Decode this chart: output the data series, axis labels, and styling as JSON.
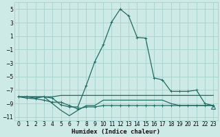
{
  "bg_color": "#ceeae6",
  "grid_color": "#a8d4cf",
  "line_color": "#1d6b62",
  "xlabel": "Humidex (Indice chaleur)",
  "xlim": [
    -0.5,
    23.5
  ],
  "ylim": [
    -11.5,
    6.0
  ],
  "xticks": [
    0,
    1,
    2,
    3,
    4,
    5,
    6,
    7,
    8,
    9,
    10,
    11,
    12,
    13,
    14,
    15,
    16,
    17,
    18,
    19,
    20,
    21,
    22,
    23
  ],
  "yticks": [
    -11,
    -9,
    -7,
    -5,
    -3,
    -1,
    1,
    3,
    5
  ],
  "series_main": {
    "x": [
      0,
      1,
      2,
      3,
      4,
      5,
      6,
      7,
      8,
      9,
      10,
      11,
      12,
      13,
      14,
      15,
      16,
      17,
      18,
      19,
      20,
      21,
      22,
      23
    ],
    "y": [
      -8,
      -8,
      -8.2,
      -8,
      -8.2,
      -9.2,
      -9.5,
      -9.5,
      -6.3,
      -2.8,
      -0.3,
      3.1,
      5.0,
      4.0,
      0.8,
      0.7,
      -5.2,
      -5.5,
      -7.2,
      -7.2,
      -7.2,
      -7.0,
      -9.0,
      -9.3
    ],
    "marker": "+"
  },
  "series2": {
    "x": [
      0,
      1,
      2,
      3,
      4,
      5,
      6,
      7,
      8,
      9,
      10,
      11,
      12,
      13,
      14,
      15,
      16,
      17,
      18,
      19,
      20,
      21,
      22,
      23
    ],
    "y": [
      -8,
      -8,
      -8,
      -8,
      -8,
      -7.8,
      -7.8,
      -7.8,
      -7.8,
      -7.8,
      -7.8,
      -7.8,
      -7.8,
      -7.8,
      -7.8,
      -7.8,
      -7.8,
      -7.8,
      -7.8,
      -7.8,
      -7.8,
      -7.8,
      -7.8,
      -7.8
    ],
    "marker": null
  },
  "series3": {
    "x": [
      0,
      1,
      2,
      3,
      4,
      5,
      6,
      7,
      8,
      9,
      10,
      11,
      12,
      13,
      14,
      15,
      16,
      17,
      18,
      19,
      20,
      21,
      22,
      23
    ],
    "y": [
      -8,
      -8,
      -8,
      -8,
      -9,
      -10,
      -10.8,
      -10,
      -9.3,
      -9.3,
      -8.5,
      -8.5,
      -8.5,
      -8.5,
      -8.5,
      -8.5,
      -8.5,
      -8.5,
      -9.0,
      -9.3,
      -9.3,
      -9.3,
      -9.3,
      -9.3
    ],
    "marker": null
  },
  "series4": {
    "x": [
      0,
      1,
      2,
      3,
      4,
      5,
      6,
      7,
      8,
      9,
      10,
      11,
      12,
      13,
      14,
      15,
      16,
      17,
      18,
      19,
      20,
      21,
      22,
      23
    ],
    "y": [
      -8,
      -8.2,
      -8.3,
      -8.5,
      -8.8,
      -8.8,
      -9.3,
      -9.8,
      -9.5,
      -9.5,
      -9.3,
      -9.3,
      -9.3,
      -9.3,
      -9.3,
      -9.3,
      -9.3,
      -9.3,
      -9.3,
      -9.3,
      -9.3,
      -9.3,
      -9.3,
      -9.3
    ],
    "marker": "+"
  },
  "series_tri": {
    "x": [
      23
    ],
    "y": [
      -9.5
    ],
    "marker": "^"
  }
}
